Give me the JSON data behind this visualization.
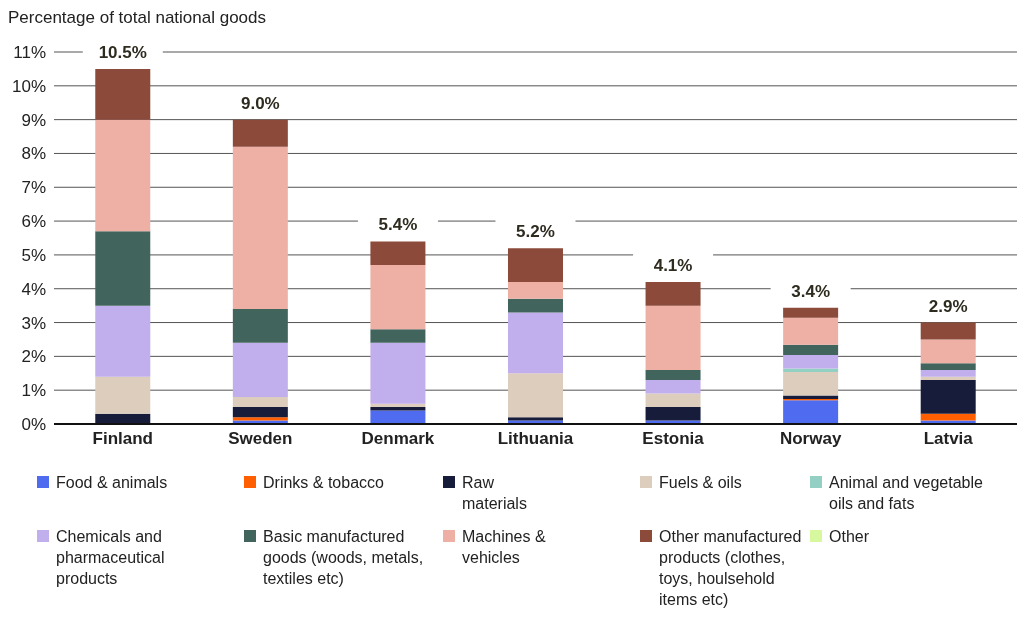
{
  "chart_data": {
    "type": "bar",
    "stacked": true,
    "ylabel": "Percentage of total national goods",
    "categories": [
      "Finland",
      "Sweden",
      "Denmark",
      "Lithuania",
      "Estonia",
      "Norway",
      "Latvia"
    ],
    "series": [
      {
        "name": "Food & animals",
        "color": "#4f6bf0",
        "values": [
          null,
          0.1,
          0.4,
          0.1,
          0.1,
          0.7,
          0.1
        ]
      },
      {
        "name": "Drinks & tobacco",
        "color": "#ff5f00",
        "values": [
          null,
          0.1,
          null,
          null,
          null,
          0.04,
          0.2
        ]
      },
      {
        "name": "Raw materials",
        "color": "#171c3b",
        "values": [
          0.3,
          0.3,
          0.1,
          0.1,
          0.4,
          0.1,
          1.0
        ]
      },
      {
        "name": "Fuels & oils",
        "color": "#dccdbd",
        "values": [
          1.1,
          0.3,
          0.1,
          1.3,
          0.4,
          0.7,
          0.1
        ]
      },
      {
        "name": "Animal and vegetable oils and fats",
        "color": "#93cfc2",
        "values": [
          null,
          null,
          null,
          null,
          null,
          0.1,
          null
        ]
      },
      {
        "name": "Chemicals and pharmaceutical products",
        "color": "#c1aeec",
        "values": [
          2.1,
          1.6,
          1.8,
          1.8,
          0.4,
          0.4,
          0.2
        ]
      },
      {
        "name": "Basic manufactured goods (woods, metals, textiles etc)",
        "color": "#41645d",
        "values": [
          2.2,
          1.0,
          0.4,
          0.4,
          0.3,
          0.3,
          0.2
        ]
      },
      {
        "name": "Machines & vehicles",
        "color": "#eeb0a5",
        "values": [
          3.3,
          4.8,
          1.9,
          0.5,
          1.9,
          0.8,
          0.7
        ]
      },
      {
        "name": "Other manufactured products (clothes, toys, houlsehold items etc)",
        "color": "#8b4a3a",
        "values": [
          1.5,
          0.8,
          0.7,
          1.0,
          0.7,
          0.3,
          0.5
        ]
      },
      {
        "name": "Other",
        "color": "#d8f8a0",
        "values": [
          null,
          null,
          null,
          null,
          null,
          null,
          null
        ]
      }
    ],
    "totals": [
      "10.5%",
      "9.0%",
      "5.4%",
      "5.2%",
      "4.1%",
      "3.4%",
      "2.9%"
    ],
    "ylim": [
      0,
      11
    ],
    "yticks": [
      {
        "value": 0,
        "label": "0%"
      },
      {
        "value": 1,
        "label": "1%"
      },
      {
        "value": 2,
        "label": "2%"
      },
      {
        "value": 3,
        "label": "3%"
      },
      {
        "value": 4,
        "label": "4%"
      },
      {
        "value": 5,
        "label": "5%"
      },
      {
        "value": 6,
        "label": "6%"
      },
      {
        "value": 7,
        "label": "7%"
      },
      {
        "value": 8,
        "label": "8%"
      },
      {
        "value": 9,
        "label": "9%"
      },
      {
        "value": 10,
        "label": "10%"
      },
      {
        "value": 11,
        "label": "11%"
      }
    ],
    "grid": "y",
    "legend": "bottom"
  }
}
